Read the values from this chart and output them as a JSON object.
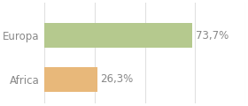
{
  "categories": [
    "Europa",
    "Africa"
  ],
  "values": [
    73.7,
    26.3
  ],
  "bar_colors": [
    "#b5c98e",
    "#e8b87a"
  ],
  "labels": [
    "73,7%",
    "26,3%"
  ],
  "xlim": [
    0,
    100
  ],
  "background_color": "#ffffff",
  "grid_color": "#e0e0e0",
  "bar_height": 0.55,
  "label_fontsize": 8.5,
  "tick_fontsize": 8.5,
  "label_color": "#888888",
  "tick_color": "#888888"
}
